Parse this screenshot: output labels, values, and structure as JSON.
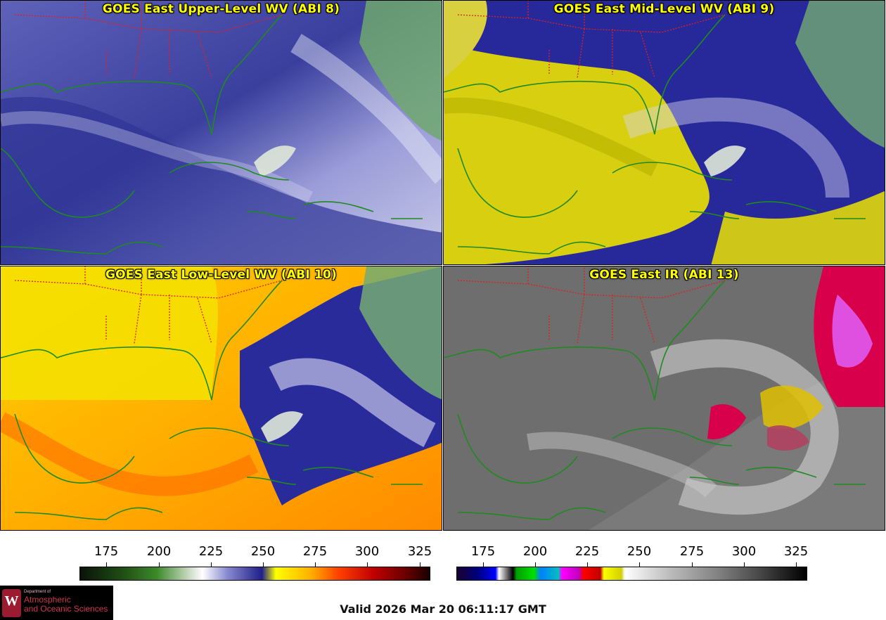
{
  "panels": [
    {
      "title": "GOES East Upper-Level WV (ABI 8)",
      "scheme": "wv-blue"
    },
    {
      "title": "GOES East Mid-Level WV (ABI 9)",
      "scheme": "wv-yellow"
    },
    {
      "title": "GOES East Low-Level WV (ABI 10)",
      "scheme": "wv-orange"
    },
    {
      "title": "GOES East IR (ABI 13)",
      "scheme": "ir"
    }
  ],
  "colorbars": [
    {
      "name": "wv",
      "ticks": [
        "175",
        "200",
        "225",
        "250",
        "275",
        "300",
        "325"
      ]
    },
    {
      "name": "ir",
      "ticks": [
        "175",
        "200",
        "225",
        "250",
        "275",
        "300",
        "325"
      ]
    }
  ],
  "footer": {
    "valid": "Valid 2026 Mar 20 06:11:17 GMT"
  },
  "logo": {
    "line1": "Department of",
    "line2": "Atmospheric",
    "line3": "and Oceanic Sciences"
  },
  "colors": {
    "coast": "#1f8a1f",
    "state_borders": "#e02020",
    "title": "#ffff00"
  }
}
